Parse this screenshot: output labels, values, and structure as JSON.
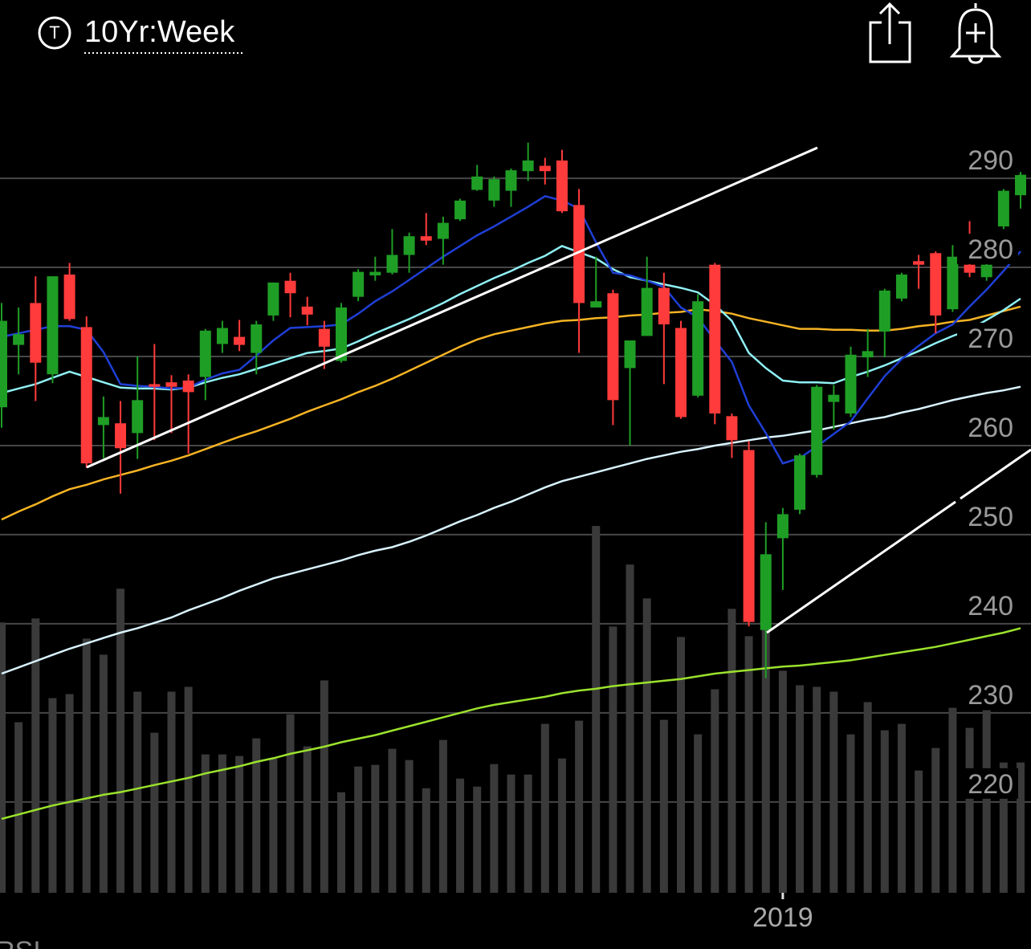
{
  "header": {
    "symbol_icon": "T",
    "title": "10Yr:Week"
  },
  "lower_panel_label": "RSI",
  "chart_data": {
    "type": "candlestick",
    "categories": [
      null,
      null,
      null,
      null,
      null,
      null,
      null,
      null,
      null,
      null,
      null,
      null,
      null,
      null,
      null,
      null,
      null,
      null,
      null,
      null,
      null,
      null,
      null,
      null,
      null,
      null,
      null,
      null,
      null,
      null,
      null,
      null,
      null,
      null,
      null,
      null,
      null,
      null,
      null,
      null,
      null,
      null,
      null,
      null,
      null,
      null,
      "2019",
      null,
      null,
      null,
      null,
      null,
      null,
      null,
      null,
      null,
      null,
      null,
      null,
      null,
      null
    ],
    "open": [
      264.3,
      271.3,
      276,
      268,
      279.2,
      273.3,
      262.3,
      262.5,
      261.4,
      266.9,
      267.1,
      267.3,
      267.7,
      271.4,
      272.2,
      270.4,
      274.6,
      278.5,
      275.6,
      273.1,
      269.5,
      276.7,
      279.1,
      279.4,
      281.4,
      283.5,
      283.2,
      285.4,
      288.7,
      287.5,
      288.6,
      290.8,
      291.4,
      292,
      287,
      275.5,
      277.1,
      268.7,
      272.3,
      277.7,
      273.2,
      265.6,
      280.3,
      263.3,
      259.5,
      239.3,
      249.6,
      252.8,
      256.7,
      264.9,
      263.6,
      269.9,
      272.8,
      276.5,
      280.7,
      281.6,
      275.3,
      280.3,
      278.9,
      284.6,
      288.1
    ],
    "high": [
      276,
      275.5,
      279,
      279,
      280.5,
      274.5,
      265.5,
      265,
      270,
      271.4,
      267.9,
      268,
      273.1,
      274,
      274.1,
      274,
      278.3,
      279.4,
      276.7,
      274,
      276,
      279.8,
      281.2,
      284.3,
      283.9,
      286.1,
      285.7,
      287.7,
      291.5,
      290.2,
      291.1,
      294,
      292.3,
      293.2,
      288.8,
      281.2,
      277.5,
      271.8,
      281.2,
      279.4,
      274,
      277,
      280.5,
      263.6,
      260.5,
      251.4,
      253,
      259.1,
      266.8,
      266.8,
      271.1,
      273.1,
      277.6,
      279.4,
      281.4,
      281.8,
      282.5,
      285.2,
      281,
      288.8,
      290.7
    ],
    "low": [
      262,
      268,
      265,
      267,
      274,
      257.5,
      258.6,
      254.6,
      258.5,
      260.6,
      261.4,
      259.1,
      265.1,
      270.4,
      270.6,
      268,
      274,
      274.4,
      273.5,
      268.6,
      269.3,
      276.2,
      278.5,
      279.2,
      279.4,
      282.5,
      280.3,
      285.2,
      288.6,
      286.8,
      286.8,
      289.7,
      289.3,
      286.1,
      270.4,
      275.5,
      262.3,
      260,
      272.3,
      266.9,
      263,
      265.4,
      262.4,
      258.6,
      239.7,
      233.9,
      243.8,
      252.3,
      256.4,
      261.8,
      263.2,
      267.7,
      269.9,
      276.2,
      277.6,
      272.6,
      275,
      278.9,
      278.5,
      284.3,
      286.6
    ],
    "close": [
      274,
      272.5,
      269.3,
      279,
      274.2,
      258,
      263.2,
      259.7,
      265.1,
      266.6,
      266.6,
      266,
      272.9,
      273.2,
      271.3,
      273.6,
      278.3,
      277.1,
      274.7,
      271.1,
      275.5,
      279.5,
      279.5,
      281.4,
      283.5,
      283,
      285,
      287.5,
      290.2,
      289.9,
      290.9,
      292,
      290.8,
      286.3,
      276,
      276.2,
      265.1,
      271.8,
      277.7,
      273.6,
      263.2,
      276.2,
      263.6,
      260.6,
      240.2,
      247.8,
      252.3,
      258.9,
      266.6,
      265.7,
      270.2,
      270.6,
      277.4,
      279.2,
      280.3,
      274.6,
      281.2,
      279.4,
      280.3,
      288.6,
      290.4
    ],
    "up_color": "#1f9e25",
    "down_color": "#ff3b3b",
    "volume": {
      "axis": "y2",
      "color": "#3a3a3a",
      "values": [
        33.6,
        21.2,
        34.1,
        24.2,
        24.7,
        31.6,
        29.6,
        37.8,
        25,
        19.9,
        25,
        25.6,
        17.2,
        17.2,
        17,
        19.2,
        16.7,
        22.2,
        18.2,
        26.4,
        12.5,
        15.7,
        15.9,
        17.9,
        16.5,
        13,
        19,
        14.2,
        13.2,
        16,
        14.7,
        14.7,
        21,
        16.7,
        21.4,
        45.6,
        33.1,
        40.8,
        36.6,
        21.5,
        31.8,
        19.7,
        25.3,
        35.3,
        31.9,
        33.1,
        27.6,
        25.8,
        25.6,
        25,
        19.7,
        23.7,
        20.2,
        21,
        15.2,
        18,
        23,
        20.5,
        22.7,
        16.2,
        16.2
      ]
    },
    "overlays": [
      {
        "color": "#f5b324",
        "values": [
          251.7,
          252.6,
          253.4,
          254.3,
          255.1,
          255.6,
          256.2,
          256.7,
          257.2,
          257.8,
          258.3,
          258.9,
          259.6,
          260.3,
          261,
          261.6,
          262.3,
          263,
          263.8,
          264.5,
          265.2,
          266,
          266.7,
          267.5,
          268.4,
          269.3,
          270.2,
          271.1,
          271.9,
          272.5,
          272.9,
          273.3,
          273.7,
          274,
          274.1,
          274.3,
          274.4,
          274.6,
          274.7,
          274.9,
          275,
          275.3,
          275.1,
          274.8,
          274.3,
          273.9,
          273.5,
          273.1,
          273.1,
          273,
          273,
          272.9,
          272.9,
          273.1,
          273.4,
          273.6,
          273.9,
          274.1,
          274.6,
          275.1,
          275.6
        ]
      },
      {
        "color": "#d9f3ff",
        "values": [
          234.4,
          235.1,
          235.8,
          236.5,
          237.2,
          237.8,
          238.4,
          239,
          239.5,
          240.1,
          240.7,
          241.5,
          242.2,
          242.9,
          243.7,
          244.4,
          245.1,
          245.6,
          246.1,
          246.6,
          247.1,
          247.7,
          248.2,
          248.6,
          249.2,
          249.9,
          250.7,
          251.5,
          252.2,
          253,
          253.7,
          254.5,
          255.3,
          256,
          256.5,
          257,
          257.5,
          258,
          258.5,
          258.9,
          259.3,
          259.6,
          260,
          260.3,
          260.6,
          260.9,
          261.1,
          261.4,
          261.7,
          262.1,
          262.5,
          262.9,
          263.2,
          263.7,
          264.1,
          264.6,
          265.1,
          265.5,
          265.9,
          266.2,
          266.6
        ]
      },
      {
        "color": "#9be22d",
        "values": [
          218.1,
          218.6,
          219.1,
          219.6,
          220,
          220.4,
          220.8,
          221.1,
          221.5,
          221.9,
          222.3,
          222.7,
          223.2,
          223.6,
          224,
          224.5,
          224.9,
          225.4,
          225.8,
          226.2,
          226.7,
          227.1,
          227.5,
          228,
          228.5,
          229,
          229.5,
          230,
          230.5,
          230.9,
          231.2,
          231.5,
          231.8,
          232.2,
          232.5,
          232.7,
          233,
          233.2,
          233.4,
          233.6,
          233.8,
          234.1,
          234.4,
          234.6,
          234.8,
          235,
          235.2,
          235.3,
          235.5,
          235.7,
          235.9,
          236.2,
          236.5,
          236.8,
          237.1,
          237.4,
          237.8,
          238.2,
          238.6,
          239,
          239.5
        ]
      },
      {
        "color": "#8ff0f4",
        "values": [
          265.9,
          266.4,
          266.9,
          267.6,
          268.3,
          267.7,
          267.1,
          266.5,
          266.4,
          266.4,
          266.3,
          266.5,
          267.1,
          267.6,
          268,
          268.6,
          269.2,
          269.8,
          270.4,
          270.6,
          270.9,
          271.7,
          272.6,
          273.4,
          274.2,
          275.1,
          276,
          277,
          277.9,
          278.8,
          279.6,
          280.5,
          281.3,
          282.4,
          281.7,
          281,
          279.8,
          278.9,
          278.5,
          278.1,
          277.7,
          277.2,
          275.8,
          274,
          270.4,
          268.7,
          267.3,
          267.1,
          267.1,
          267,
          267.7,
          268.3,
          269,
          269.8,
          270.6,
          271.5,
          272.3,
          273,
          274.1,
          275.2,
          276.5
        ]
      },
      {
        "color": "#1f3fd6",
        "values": [
          272.2,
          272.6,
          273,
          273.4,
          273.4,
          273,
          270.5,
          266.9,
          266.7,
          266.6,
          266.4,
          266.5,
          267.4,
          268.1,
          268.5,
          270.1,
          271.8,
          273.2,
          273.3,
          273.4,
          273.6,
          274.8,
          276.2,
          277.3,
          278.6,
          279.9,
          281.2,
          282.4,
          283.6,
          284.6,
          285.7,
          286.8,
          288,
          287.5,
          286.6,
          282.8,
          279.4,
          279.1,
          278.5,
          277.8,
          275.5,
          274.4,
          271.8,
          269.4,
          264.5,
          261.4,
          258,
          258.6,
          259.9,
          261.3,
          262.7,
          265.3,
          267.8,
          269.7,
          271.2,
          272.6,
          273.6,
          275.6,
          277.5,
          279.6,
          281.8
        ]
      }
    ],
    "ylim": [
      209.8,
      300.1
    ],
    "yticks": [
      220,
      230,
      240,
      250,
      260,
      270,
      280,
      290
    ],
    "y2lim": [
      0,
      100
    ],
    "grid": true
  }
}
